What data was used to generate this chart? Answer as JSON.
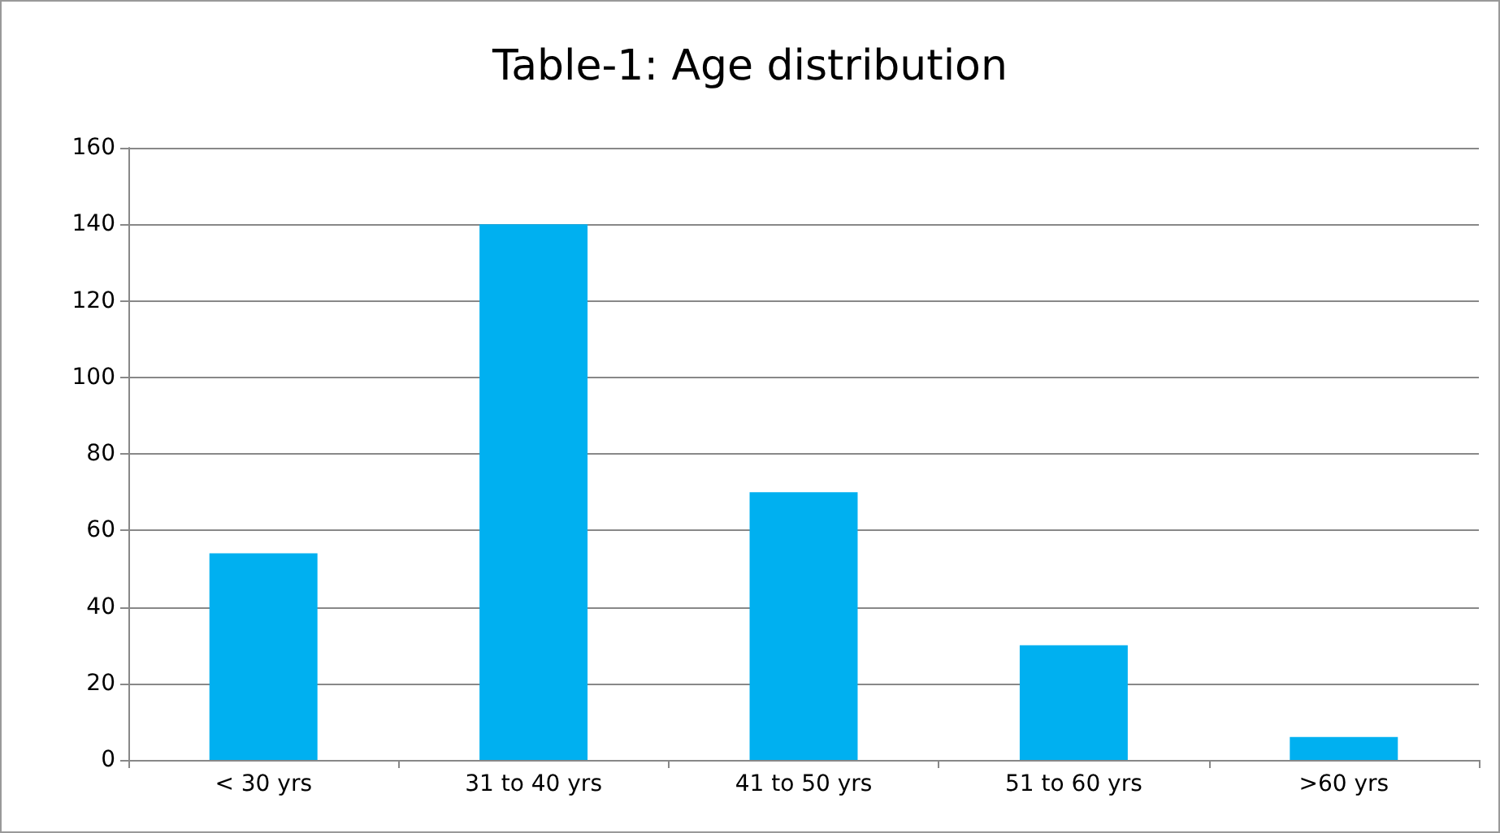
{
  "chart_data": {
    "type": "bar",
    "title": "Table-1: Age distribution",
    "categories": [
      "< 30 yrs",
      "31 to 40 yrs",
      "41 to 50 yrs",
      "51 to 60 yrs",
      ">60 yrs"
    ],
    "values": [
      54,
      140,
      70,
      30,
      6
    ],
    "color": "#00b0f0",
    "ylim": [
      0,
      160
    ],
    "yticks": [
      0,
      20,
      40,
      60,
      80,
      100,
      120,
      140,
      160
    ],
    "grid": "y"
  }
}
